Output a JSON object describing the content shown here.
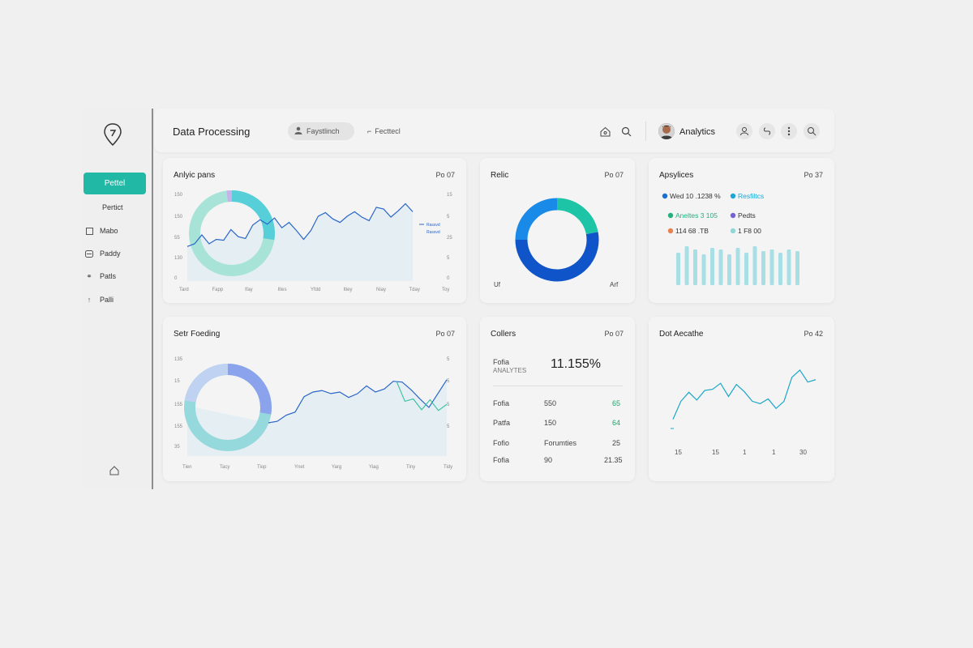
{
  "sidebar": {
    "active_label": "Pettel",
    "items": [
      {
        "label": "Pertict",
        "icon": ""
      },
      {
        "label": "Mabo",
        "icon": "square-icon"
      },
      {
        "label": "Paddy",
        "icon": "card-icon"
      },
      {
        "label": "Patls",
        "icon": "link-icon"
      },
      {
        "label": "Palli",
        "icon": "arrow-up-icon"
      }
    ]
  },
  "header": {
    "title": "Data Processing",
    "pill_label": "Faystlinch",
    "secondary_label": "Fecttecl",
    "user_name": "Analytics"
  },
  "cards": {
    "c1": {
      "title": "Anlyic pans",
      "badge": "Po 07"
    },
    "c2": {
      "title": "Relic",
      "badge": "Po 07",
      "left_label": "Uf",
      "right_label": "Arf"
    },
    "c3": {
      "title": "Apsylices",
      "badge": "Po 37"
    },
    "c4": {
      "title": "Setr Foeding",
      "badge": "Po 07"
    },
    "c5": {
      "title": "Collers",
      "badge": "Po 07"
    },
    "c6": {
      "title": "Dot Aecathe",
      "badge": "Po 42"
    }
  },
  "legend_c1": [
    "Rassvd",
    "Rassvd"
  ],
  "c3_legend": [
    {
      "label": "Wed 10 .1238 %",
      "color": "#1a6fd1"
    },
    {
      "label": "Resfiltcs",
      "color": "#1aa7d6"
    },
    {
      "label": "Aneltes 3 105",
      "color": "#22b07d"
    },
    {
      "label": "Pedts",
      "color": "#7563d6"
    },
    {
      "label": "114 68 .TB",
      "color": "#e5824f"
    },
    {
      "label": "1 F8 00",
      "color": "#8ed9d6"
    }
  ],
  "c5": {
    "headline_label": "Fofia",
    "headline_sub": "ANALYTES",
    "headline_value": "11.155%",
    "rows": [
      {
        "a": "Fofia",
        "b": "550",
        "c": "65",
        "green": true
      },
      {
        "a": "Patfa",
        "b": "150",
        "c": "64",
        "green": true
      },
      {
        "a": "Fofio",
        "b": "Forumties",
        "c": "25",
        "green": false
      },
      {
        "a": "Fofia",
        "b": "90",
        "c": "21.35",
        "green": false
      }
    ]
  },
  "c1_axis": {
    "x": [
      "Tard",
      "Fapp",
      "Ifay",
      "Iltes",
      "Yfdd",
      "Itiey",
      "Niay",
      "Tday",
      "Toy"
    ],
    "y_left": [
      "150",
      "150",
      "55",
      "130",
      "0"
    ],
    "y_right": [
      "15",
      "5",
      "25",
      "5",
      "0"
    ]
  },
  "c4_axis": {
    "x": [
      "Tien",
      "Tacy",
      "Tiop",
      "Ynet",
      "Yarg",
      "Yiag",
      "Tiny",
      "Tidy"
    ],
    "y_left": [
      "135",
      "15",
      "155",
      "155",
      "35"
    ],
    "y_right": [
      "5",
      "5",
      "5",
      "5"
    ]
  },
  "c6_axis": {
    "x": [
      "15",
      "15",
      "1",
      "1",
      "30"
    ]
  },
  "chart_c1": {
    "line": [
      37,
      40,
      50,
      40,
      45,
      44,
      56,
      48,
      46,
      61,
      67,
      62,
      69,
      58,
      64,
      55,
      45,
      55,
      71,
      75,
      68,
      64,
      71,
      76,
      70,
      66,
      81,
      79,
      70,
      77,
      85,
      76
    ],
    "ring_value": 0.04,
    "ring_colors": [
      "#57cfd9",
      "#a7e3d6"
    ]
  },
  "chart_c2": {
    "segments": [
      {
        "value": 22,
        "color": "#1ec4a6"
      },
      {
        "value": 53,
        "color": "#0f55c9"
      },
      {
        "value": 25,
        "color": "#1a8ae8"
      }
    ]
  },
  "chart_c3": {
    "bars": [
      40,
      48,
      44,
      38,
      46,
      44,
      38,
      46,
      40,
      48,
      42,
      44,
      40,
      44,
      42
    ],
    "color": "#a7dfe4"
  },
  "chart_c4": {
    "line": [
      20,
      22,
      30,
      34,
      54,
      60,
      62,
      58,
      60,
      53,
      58,
      68,
      60,
      64,
      74,
      73,
      63,
      51,
      40,
      58,
      76
    ],
    "line2": [
      74,
      48,
      51,
      37,
      50,
      36,
      44
    ],
    "ring_primary": 0.45,
    "colors": [
      "#8aa3ec",
      "#bfd2f1",
      "#96d9dd"
    ]
  },
  "chart_c6": {
    "line": [
      10,
      40,
      55,
      42,
      58,
      60,
      70,
      48,
      68,
      56,
      40,
      36,
      44,
      28,
      40,
      80,
      92,
      72,
      76
    ]
  }
}
